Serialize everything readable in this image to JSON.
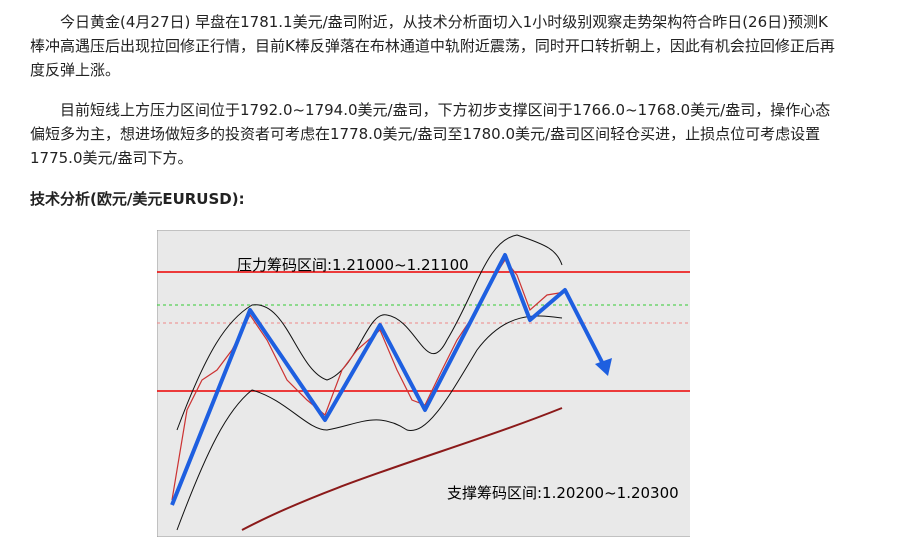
{
  "article": {
    "paragraphs": [
      "今日黄金(4月27日) 早盘在1781.1美元/盎司附近，从技术分析面切入1小时级别观察走势架构符合昨日(26日)预测K棒冲高遇压后出现拉回修正行情，目前K棒反弹落在布林通道中轨附近震荡，同时开口转折朝上，因此有机会拉回修正后再度反弹上涨。",
      "目前短线上方压力区间位于1792.0~1794.0美元/盎司，下方初步支撑区间于1766.0~1768.0美元/盎司，操作心态偏短多为主，想进场做短多的投资者可考虑在1778.0美元/盎司至1780.0美元/盎司区间轻仓买进，止损点位可考虑设置1775.0美元/盎司下方。"
    ],
    "heading": "技术分析(欧元/美元EURUSD):",
    "figure": {
      "resistance_label": "压力筹码区间:1.21000~1.21100",
      "support_label": "支撑筹码区间:1.20200~1.20300"
    }
  }
}
